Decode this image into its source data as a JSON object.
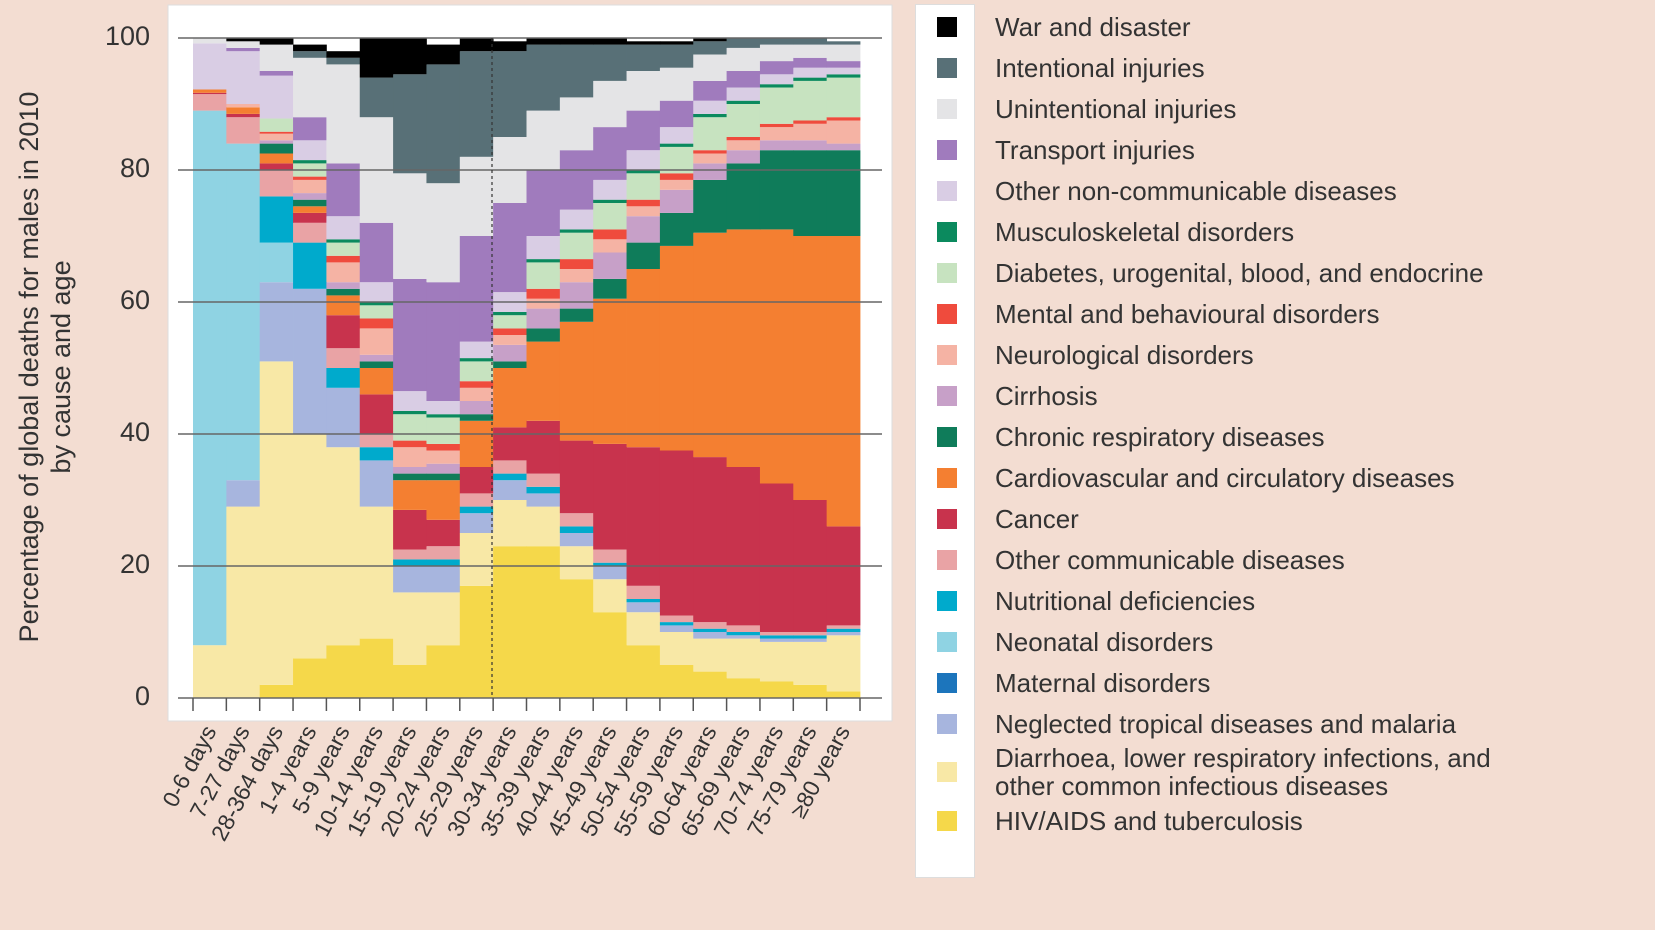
{
  "chart_data": {
    "type": "bar",
    "stacked": true,
    "y_label": [
      "Percentage of global deaths for males in 2010",
      "by cause and age"
    ],
    "categories": [
      "0-6 days",
      "7-27 days",
      "28-364 days",
      "1-4 years",
      "5-9 years",
      "10-14 years",
      "15-19 years",
      "20-24 years",
      "25-29 years",
      "30-34 years",
      "35-39 years",
      "40-44 years",
      "45-49 years",
      "50-54 years",
      "55-59 years",
      "60-64 years",
      "65-69 years",
      "70-74 years",
      "75-79 years",
      "≥80 years"
    ],
    "series": [
      {
        "name": "HIV/AIDS and tuberculosis",
        "color": "#f5d84a",
        "values": [
          0,
          0,
          2,
          6,
          8,
          9,
          5,
          8,
          17,
          23,
          23,
          18,
          13,
          8,
          5,
          4,
          3,
          2.5,
          2,
          1
        ]
      },
      {
        "name": "Diarrhoea, lower respiratory infections, and other common infectious diseases",
        "color": "#f8e8a6",
        "values": [
          8,
          29,
          49,
          34,
          30,
          20,
          11,
          8,
          8,
          7,
          6,
          5,
          5,
          5,
          5,
          5,
          6,
          6,
          6.5,
          8.5
        ]
      },
      {
        "name": "Neglected tropical diseases and malaria",
        "color": "#a7b5de",
        "values": [
          0,
          4,
          12,
          22,
          9,
          7,
          4,
          4,
          3,
          3,
          2,
          2,
          2,
          1.5,
          1,
          1,
          0.5,
          0.5,
          0.5,
          0.5
        ]
      },
      {
        "name": "Maternal disorders",
        "color": "#1c75bc",
        "values": [
          0,
          0,
          0,
          0,
          0,
          0,
          0,
          0,
          0,
          0,
          0,
          0,
          0,
          0,
          0,
          0,
          0,
          0,
          0,
          0
        ]
      },
      {
        "name": "Neonatal disorders",
        "color": "#8fd3e3",
        "values": [
          81,
          51,
          6,
          0,
          0,
          0,
          0,
          0,
          0,
          0,
          0,
          0,
          0,
          0,
          0,
          0,
          0,
          0,
          0,
          0
        ]
      },
      {
        "name": "Nutritional deficiencies",
        "color": "#00aacc",
        "values": [
          0,
          0,
          7,
          7,
          3,
          2,
          1,
          1,
          1,
          1,
          1,
          1,
          0.5,
          0.5,
          0.5,
          0.5,
          0.5,
          0.5,
          0.5,
          0.5
        ]
      },
      {
        "name": "Other communicable diseases",
        "color": "#e9a3a5",
        "values": [
          2.5,
          4,
          4,
          3,
          3,
          2,
          1.5,
          2,
          2,
          2,
          2,
          2,
          2,
          2,
          1,
          1,
          1,
          0.5,
          0.5,
          0.5
        ]
      },
      {
        "name": "Cancer",
        "color": "#c8334d",
        "values": [
          0.2,
          0.5,
          1,
          1.5,
          5,
          6,
          6,
          4,
          4,
          5,
          8,
          11,
          16,
          21,
          25,
          25,
          24,
          22.5,
          20,
          15
        ]
      },
      {
        "name": "Cardiovascular and circulatory diseases",
        "color": "#f47f31",
        "values": [
          0.5,
          1,
          1.5,
          1,
          3,
          4,
          4.5,
          6,
          7,
          9,
          12,
          18,
          22,
          27,
          31,
          34,
          36,
          38.5,
          40,
          44
        ]
      },
      {
        "name": "Chronic respiratory diseases",
        "color": "#0f7c5a",
        "values": [
          0,
          0,
          1.5,
          1,
          1,
          1,
          1,
          1,
          1,
          1,
          2,
          2,
          3,
          4,
          5,
          8,
          10,
          12,
          13,
          13
        ]
      },
      {
        "name": "Cirrhosis",
        "color": "#c7a0c8",
        "values": [
          0,
          0,
          0.5,
          1,
          1,
          1,
          1,
          1.5,
          2,
          2.5,
          3,
          4,
          4,
          4,
          3.5,
          2.5,
          2,
          1.5,
          1.5,
          1
        ]
      },
      {
        "name": "Neurological disorders",
        "color": "#f5b3a4",
        "values": [
          0,
          0.5,
          1,
          2,
          3,
          4,
          3,
          2,
          2,
          1.5,
          1.5,
          2,
          2,
          1.5,
          1.5,
          1.5,
          1.5,
          2,
          2.5,
          3.5
        ]
      },
      {
        "name": "Mental and behavioural disorders",
        "color": "#ef4b3d",
        "values": [
          0,
          0,
          0.3,
          0.5,
          1,
          1.5,
          1,
          1,
          1,
          1,
          1.5,
          1.5,
          1.5,
          1,
          1,
          0.5,
          0.5,
          0.5,
          0.5,
          0.5
        ]
      },
      {
        "name": "Diabetes, urogenital, blood, and endocrine",
        "color": "#c7e3c0",
        "values": [
          0,
          0,
          2,
          2,
          2,
          2,
          4,
          4,
          3,
          2,
          4,
          4,
          4,
          4,
          4,
          5,
          5,
          5.5,
          6,
          6
        ]
      },
      {
        "name": "Musculoskeletal disorders",
        "color": "#0b8a5e",
        "values": [
          0,
          0,
          0,
          0.5,
          0.5,
          0.5,
          0.5,
          0.5,
          0.5,
          0.5,
          0.5,
          0.5,
          0.5,
          0.5,
          0.5,
          0.5,
          0.5,
          0.5,
          0.5,
          0.5
        ]
      },
      {
        "name": "Other non-communicable diseases",
        "color": "#d9cde4",
        "values": [
          7,
          8,
          6.5,
          3,
          3.5,
          3,
          3,
          2,
          2.5,
          3,
          3.5,
          3,
          3,
          3,
          2.5,
          2,
          2,
          1.5,
          1.5,
          1
        ]
      },
      {
        "name": "Transport injuries",
        "color": "#a07bbd",
        "values": [
          0,
          0.5,
          0.7,
          3.5,
          8,
          9,
          17,
          18,
          16,
          13.5,
          10,
          9,
          8,
          6,
          4,
          3,
          2.5,
          2,
          1.5,
          1
        ]
      },
      {
        "name": "Unintentional injuries",
        "color": "#e4e4e6",
        "values": [
          0.8,
          1,
          4,
          9,
          15,
          16,
          16,
          15,
          12,
          10,
          9,
          8,
          7,
          6,
          5,
          4,
          3.5,
          2.5,
          2,
          2.5
        ]
      },
      {
        "name": "Intentional injuries",
        "color": "#587077",
        "values": [
          0,
          0,
          0,
          1,
          1,
          6,
          15,
          18,
          16,
          13,
          10,
          8,
          5.5,
          4,
          3.5,
          2,
          1.5,
          1,
          1,
          0.5
        ]
      },
      {
        "name": "War and disaster",
        "color": "#000000",
        "values": [
          0,
          0.5,
          1,
          1,
          1,
          6,
          5.5,
          3,
          2,
          1.5,
          1,
          1,
          1,
          0.5,
          0.5,
          0.5,
          0,
          0,
          0,
          0
        ]
      }
    ],
    "ylim": [
      0,
      100
    ],
    "yticks": [
      0,
      20,
      40,
      60,
      80,
      100
    ],
    "grid": true,
    "legend": "right"
  }
}
